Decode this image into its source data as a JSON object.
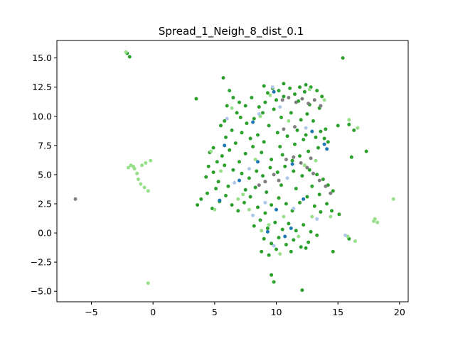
{
  "chart_data": {
    "type": "scatter",
    "title": "Spread_1_Neigh_8_dist_0.1",
    "xlabel": "",
    "ylabel": "",
    "xlim": [
      -7.8,
      20.7
    ],
    "ylim": [
      -5.9,
      16.5
    ],
    "x_ticks": [
      -5,
      0,
      5,
      10,
      15,
      20
    ],
    "y_ticks": [
      -5.0,
      -2.5,
      0.0,
      2.5,
      5.0,
      7.5,
      10.0,
      12.5,
      15.0
    ],
    "x_tick_labels": [
      "−5",
      "0",
      "5",
      "10",
      "15",
      "20"
    ],
    "y_tick_labels": [
      "−5.0",
      "−2.5",
      "0.0",
      "2.5",
      "5.0",
      "7.5",
      "10.0",
      "12.5",
      "15.0"
    ],
    "grid": false,
    "legend": "none",
    "colors": {
      "dark_green": "#2ca02c",
      "light_green": "#98df8a",
      "blue": "#1f77b4",
      "light_blue": "#aec7e8",
      "gray": "#7f7f7f"
    },
    "series": [
      {
        "color": "#2ca02c",
        "points": [
          [
            -2.1,
            15.4
          ],
          [
            -1.9,
            15.1
          ],
          [
            15.4,
            15.0
          ],
          [
            5.7,
            13.3
          ],
          [
            3.5,
            11.5
          ],
          [
            6.2,
            12.2
          ],
          [
            6.5,
            11.6
          ],
          [
            6.0,
            10.9
          ],
          [
            6.8,
            10.3
          ],
          [
            5.8,
            9.6
          ],
          [
            5.5,
            9.2
          ],
          [
            6.4,
            8.8
          ],
          [
            5.9,
            8.2
          ],
          [
            6.7,
            7.7
          ],
          [
            6.2,
            7.1
          ],
          [
            5.6,
            6.6
          ],
          [
            7.1,
            9.9
          ],
          [
            7.6,
            9.4
          ],
          [
            7.2,
            8.6
          ],
          [
            7.9,
            8.1
          ],
          [
            8.2,
            9.8
          ],
          [
            8.6,
            10.8
          ],
          [
            8.9,
            10.3
          ],
          [
            9.3,
            12.0
          ],
          [
            9.7,
            12.4
          ],
          [
            10.2,
            12.2
          ],
          [
            10.6,
            11.7
          ],
          [
            11.1,
            12.4
          ],
          [
            11.5,
            11.9
          ],
          [
            11.9,
            12.5
          ],
          [
            12.3,
            12.1
          ],
          [
            12.8,
            12.5
          ],
          [
            13.3,
            12.2
          ],
          [
            13.7,
            11.7
          ],
          [
            9.1,
            11.2
          ],
          [
            9.8,
            10.6
          ],
          [
            10.4,
            9.9
          ],
          [
            11.2,
            10.3
          ],
          [
            12.0,
            9.7
          ],
          [
            12.5,
            10.2
          ],
          [
            13.0,
            9.6
          ],
          [
            9.4,
            9.2
          ],
          [
            10.1,
            8.6
          ],
          [
            10.9,
            8.3
          ],
          [
            11.7,
            8.8
          ],
          [
            12.4,
            8.4
          ],
          [
            13.6,
            8.7
          ],
          [
            13.9,
            8.1
          ],
          [
            14.2,
            7.8
          ],
          [
            15.9,
            9.3
          ],
          [
            16.3,
            8.8
          ],
          [
            17.3,
            7.0
          ],
          [
            16.1,
            6.5
          ],
          [
            13.4,
            7.3
          ],
          [
            12.6,
            7.0
          ],
          [
            11.9,
            6.6
          ],
          [
            11.3,
            6.2
          ],
          [
            10.5,
            6.7
          ],
          [
            9.6,
            6.3
          ],
          [
            8.8,
            6.9
          ],
          [
            8.1,
            7.4
          ],
          [
            7.5,
            6.8
          ],
          [
            7.0,
            6.1
          ],
          [
            4.5,
            5.7
          ],
          [
            4.9,
            5.2
          ],
          [
            4.3,
            4.8
          ],
          [
            5.3,
            4.4
          ],
          [
            5.8,
            5.8
          ],
          [
            6.5,
            5.4
          ],
          [
            7.2,
            5.1
          ],
          [
            7.8,
            4.7
          ],
          [
            8.4,
            5.3
          ],
          [
            8.9,
            4.9
          ],
          [
            9.5,
            5.6
          ],
          [
            10.1,
            5.2
          ],
          [
            10.7,
            5.7
          ],
          [
            11.4,
            5.3
          ],
          [
            12.1,
            4.9
          ],
          [
            12.7,
            5.4
          ],
          [
            13.3,
            5.0
          ],
          [
            13.8,
            4.6
          ],
          [
            14.2,
            4.1
          ],
          [
            14.6,
            3.6
          ],
          [
            3.6,
            2.4
          ],
          [
            3.9,
            2.9
          ],
          [
            4.4,
            3.4
          ],
          [
            4.8,
            2.1
          ],
          [
            5.4,
            2.7
          ],
          [
            5.9,
            3.2
          ],
          [
            6.4,
            2.4
          ],
          [
            6.9,
            1.9
          ],
          [
            7.4,
            2.6
          ],
          [
            7.9,
            3.1
          ],
          [
            8.5,
            2.2
          ],
          [
            9.1,
            1.7
          ],
          [
            9.6,
            2.4
          ],
          [
            10.2,
            3.0
          ],
          [
            10.8,
            2.5
          ],
          [
            11.3,
            1.9
          ],
          [
            11.9,
            2.6
          ],
          [
            12.5,
            3.1
          ],
          [
            13.1,
            2.3
          ],
          [
            13.6,
            1.8
          ],
          [
            14.1,
            2.5
          ],
          [
            14.5,
            1.9
          ],
          [
            15.1,
            1.6
          ],
          [
            8.2,
            0.6
          ],
          [
            8.7,
            1.1
          ],
          [
            9.3,
            0.4
          ],
          [
            9.9,
            0.9
          ],
          [
            10.5,
            0.3
          ],
          [
            11.0,
            0.8
          ],
          [
            11.6,
            0.2
          ],
          [
            12.2,
            0.7
          ],
          [
            12.8,
            0.1
          ],
          [
            13.3,
            -0.2
          ],
          [
            9.0,
            -0.5
          ],
          [
            9.6,
            -0.9
          ],
          [
            10.2,
            -0.4
          ],
          [
            10.8,
            -1.0
          ],
          [
            11.4,
            -0.6
          ],
          [
            12.0,
            -1.2
          ],
          [
            12.6,
            -0.8
          ],
          [
            8.8,
            -1.6
          ],
          [
            9.4,
            -1.9
          ],
          [
            10.0,
            -1.4
          ],
          [
            11.2,
            -1.6
          ],
          [
            12.4,
            -1.3
          ],
          [
            14.6,
            -1.6
          ],
          [
            15.9,
            -0.5
          ],
          [
            9.6,
            -3.6
          ],
          [
            9.8,
            -4.2
          ],
          [
            12.1,
            -4.9
          ],
          [
            5.1,
            3.8
          ],
          [
            6.1,
            4.0
          ],
          [
            7.5,
            3.7
          ],
          [
            8.3,
            3.9
          ],
          [
            9.2,
            3.5
          ],
          [
            10.4,
            4.1
          ],
          [
            11.6,
            3.8
          ],
          [
            12.9,
            4.0
          ],
          [
            13.5,
            3.3
          ],
          [
            4.6,
            6.9
          ],
          [
            4.9,
            7.3
          ],
          [
            5.2,
            6.1
          ],
          [
            8.5,
            8.4
          ],
          [
            9.0,
            7.8
          ],
          [
            10.3,
            7.4
          ],
          [
            11.5,
            7.6
          ],
          [
            12.2,
            8.0
          ],
          [
            13.2,
            8.2
          ],
          [
            14.0,
            8.9
          ],
          [
            15.0,
            9.2
          ],
          [
            7.0,
            11.2
          ],
          [
            7.5,
            10.9
          ],
          [
            8.0,
            11.6
          ],
          [
            10.0,
            11.4
          ],
          [
            11.8,
            11.3
          ],
          [
            12.7,
            11.0
          ],
          [
            13.5,
            10.7
          ],
          [
            9.0,
            12.6
          ],
          [
            10.6,
            12.8
          ],
          [
            12.4,
            12.7
          ]
        ]
      },
      {
        "color": "#98df8a",
        "points": [
          [
            -2.2,
            15.5
          ],
          [
            -1.8,
            5.8
          ],
          [
            -1.5,
            5.5
          ],
          [
            -1.3,
            5.1
          ],
          [
            -1.2,
            4.6
          ],
          [
            -1.0,
            4.2
          ],
          [
            -0.7,
            3.9
          ],
          [
            -0.4,
            3.6
          ],
          [
            -0.9,
            5.8
          ],
          [
            -0.6,
            6.0
          ],
          [
            -0.2,
            6.2
          ],
          [
            -2.0,
            5.6
          ],
          [
            -1.6,
            5.7
          ],
          [
            -0.4,
            -4.3
          ],
          [
            15.9,
            9.7
          ],
          [
            16.6,
            9.0
          ],
          [
            18.0,
            1.2
          ],
          [
            18.2,
            0.9
          ],
          [
            17.9,
            1.0
          ],
          [
            19.5,
            2.9
          ],
          [
            16.4,
            -0.7
          ],
          [
            15.8,
            -0.3
          ],
          [
            4.7,
            7.0
          ],
          [
            5.0,
            2.0
          ],
          [
            6.9,
            2.9
          ],
          [
            7.8,
            2.0
          ],
          [
            8.8,
            0.2
          ],
          [
            9.4,
            0.7
          ],
          [
            10.6,
            1.4
          ],
          [
            12.3,
            5.8
          ],
          [
            13.2,
            6.2
          ],
          [
            12.7,
            12.3
          ],
          [
            13.9,
            11.4
          ],
          [
            6.4,
            10.7
          ],
          [
            8.3,
            6.3
          ],
          [
            7.3,
            3.3
          ],
          [
            11.8,
            -0.3
          ],
          [
            10.3,
            -1.8
          ],
          [
            14.4,
            1.4
          ],
          [
            5.5,
            5.3
          ],
          [
            9.5,
            11.8
          ],
          [
            11.0,
            9.6
          ],
          [
            8.7,
            10.0
          ],
          [
            12.9,
            1.4
          ]
        ]
      },
      {
        "color": "#7f7f7f",
        "points": [
          [
            -6.3,
            2.9
          ],
          [
            10.5,
            11.4
          ],
          [
            11.0,
            11.6
          ],
          [
            11.6,
            11.2
          ],
          [
            12.1,
            11.5
          ],
          [
            12.6,
            11.1
          ],
          [
            13.1,
            11.4
          ],
          [
            13.6,
            10.9
          ],
          [
            10.8,
            6.3
          ],
          [
            11.4,
            6.5
          ],
          [
            12.0,
            6.0
          ],
          [
            12.5,
            5.6
          ],
          [
            13.0,
            5.1
          ],
          [
            13.5,
            4.5
          ],
          [
            14.0,
            4.0
          ],
          [
            14.4,
            3.4
          ],
          [
            9.8,
            5.0
          ],
          [
            10.2,
            4.5
          ],
          [
            8.6,
            4.1
          ],
          [
            9.1,
            4.4
          ],
          [
            10.6,
            8.9
          ],
          [
            11.5,
            9.1
          ],
          [
            12.8,
            6.4
          ]
        ]
      },
      {
        "color": "#1f77b4",
        "points": [
          [
            5.8,
            7.5
          ],
          [
            8.1,
            9.5
          ],
          [
            9.8,
            12.1
          ],
          [
            11.3,
            5.9
          ],
          [
            12.2,
            2.9
          ],
          [
            13.9,
            7.6
          ],
          [
            9.3,
            0.1
          ],
          [
            10.7,
            -0.3
          ],
          [
            7.0,
            4.5
          ],
          [
            8.5,
            6.1
          ],
          [
            12.9,
            8.7
          ],
          [
            5.4,
            2.8
          ],
          [
            10.0,
            2.0
          ],
          [
            11.2,
            0.4
          ],
          [
            14.1,
            7.2
          ]
        ]
      },
      {
        "color": "#aec7e8",
        "points": [
          [
            9.7,
            12.5
          ],
          [
            10.3,
            10.8
          ],
          [
            12.4,
            9.0
          ],
          [
            6.6,
            4.3
          ],
          [
            7.8,
            5.5
          ],
          [
            9.1,
            2.6
          ],
          [
            11.4,
            2.1
          ],
          [
            8.1,
            1.5
          ],
          [
            15.6,
            -0.2
          ],
          [
            6.0,
            9.8
          ],
          [
            10.9,
            4.7
          ],
          [
            13.3,
            1.2
          ],
          [
            9.8,
            -1.1
          ],
          [
            8.6,
            10.2
          ]
        ]
      }
    ]
  }
}
